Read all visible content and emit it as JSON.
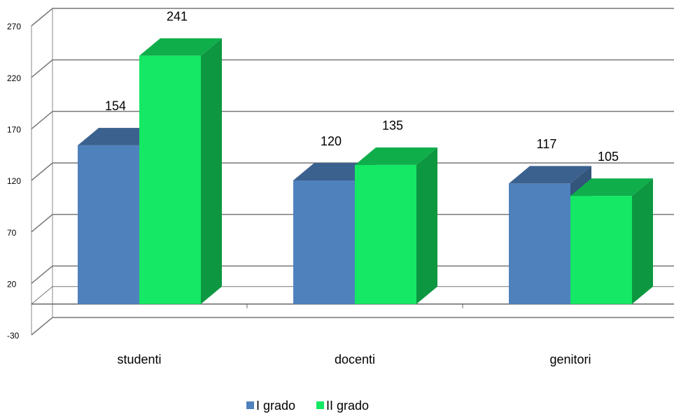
{
  "chart_data": {
    "type": "bar3d",
    "categories": [
      "studenti",
      "docenti",
      "genitori"
    ],
    "series": [
      {
        "name": "I grado",
        "color": "#4f81bd",
        "values": [
          154,
          120,
          117
        ]
      },
      {
        "name": "II grado",
        "color": "#14e864",
        "values": [
          241,
          135,
          105
        ]
      }
    ],
    "ylim": [
      -30,
      270
    ],
    "yticks": [
      -30,
      20,
      70,
      120,
      170,
      220,
      270
    ],
    "grid": true,
    "legend": "bottom"
  }
}
